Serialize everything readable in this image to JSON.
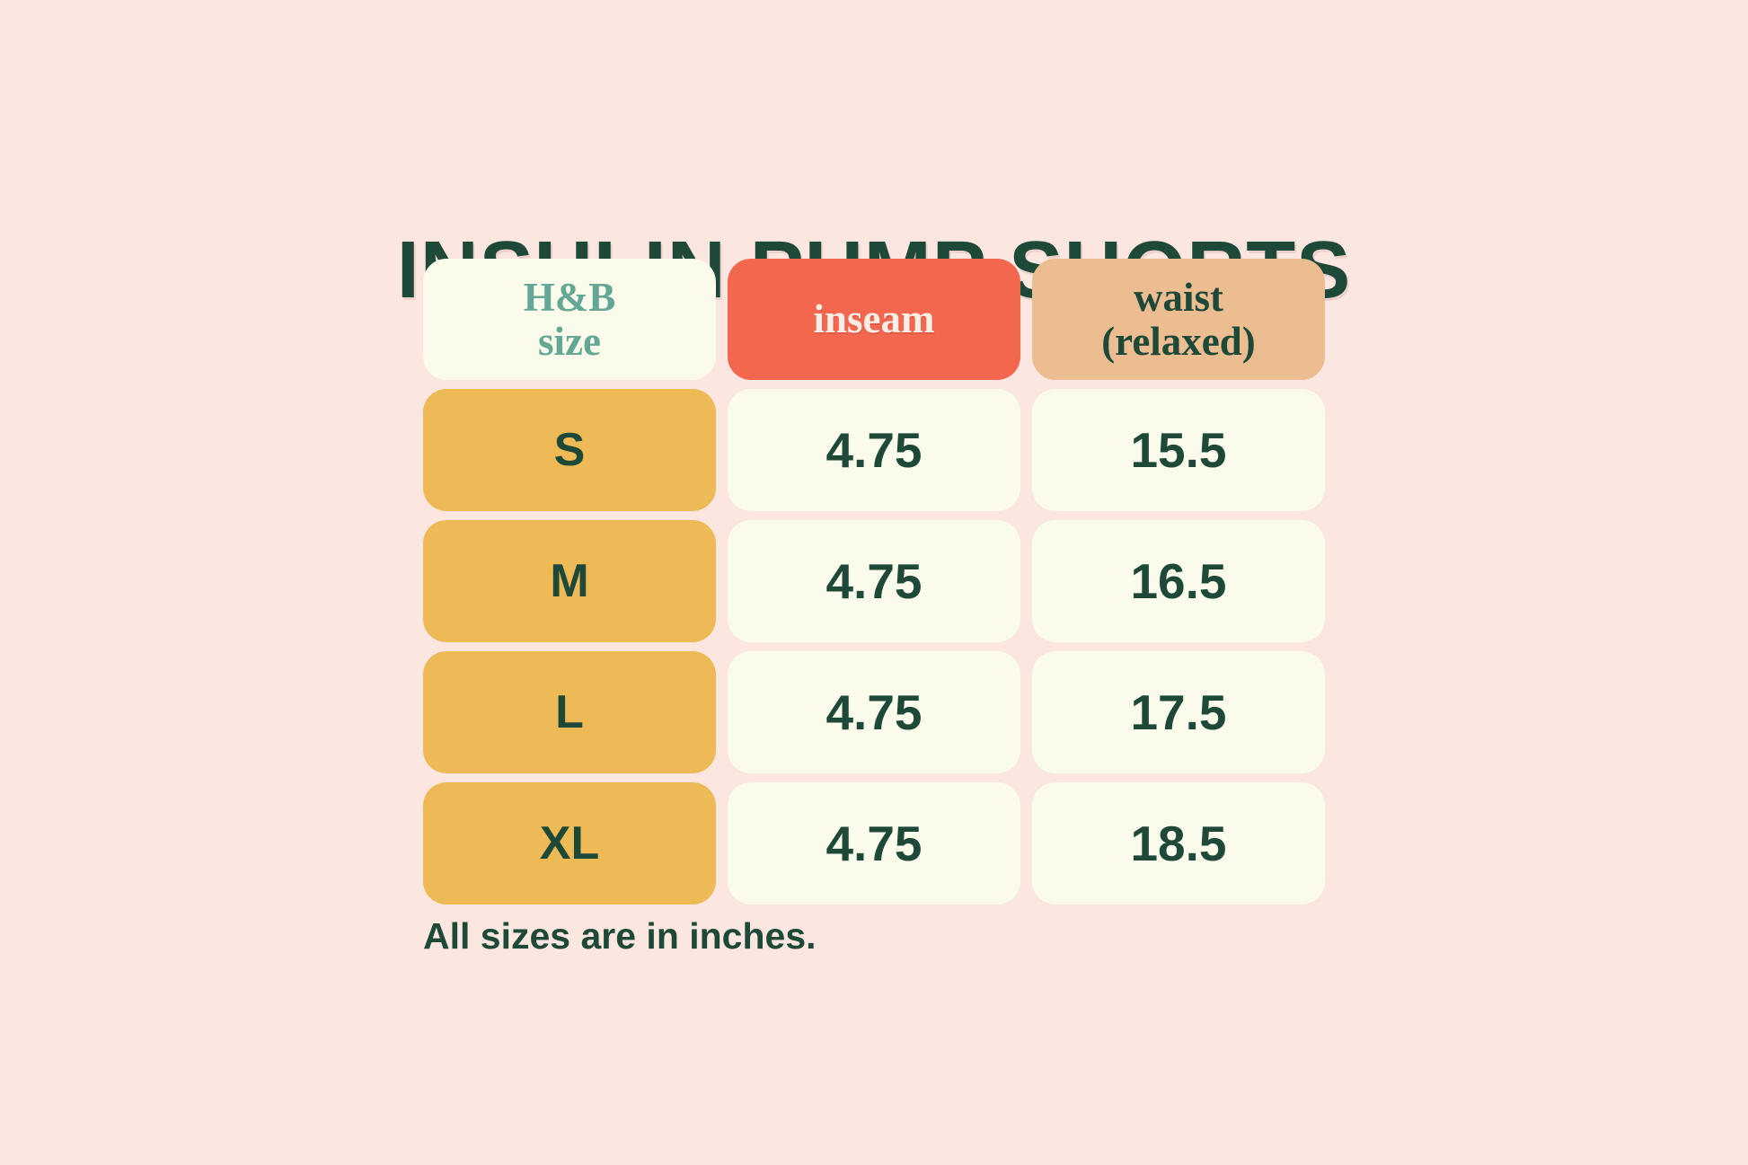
{
  "page": {
    "title": "INSULIN PUMP SHORTS",
    "footnote": "All sizes are in inches."
  },
  "header_display": {
    "col1": {
      "line1": "H&B",
      "line2": "size"
    },
    "col2": {
      "line1": "inseam"
    },
    "col3": {
      "line1": "waist",
      "line2": "(relaxed)"
    }
  },
  "chart_data": {
    "type": "table",
    "title": "INSULIN PUMP SHORTS",
    "columns": [
      "H&B size",
      "inseam",
      "waist (relaxed)"
    ],
    "rows": [
      [
        "S",
        "4.75",
        "15.5"
      ],
      [
        "M",
        "4.75",
        "16.5"
      ],
      [
        "L",
        "4.75",
        "17.5"
      ],
      [
        "XL",
        "4.75",
        "18.5"
      ]
    ],
    "note": "All sizes are in inches.",
    "units": "inches"
  },
  "colors": {
    "background": "#fce7e0",
    "dark_green": "#1e4938",
    "teal": "#63a794",
    "coral": "#f3674f",
    "coral_text": "#fceee6",
    "tan": "#edbd92",
    "yellow": "#eeba55",
    "cream": "#fbfbec"
  }
}
